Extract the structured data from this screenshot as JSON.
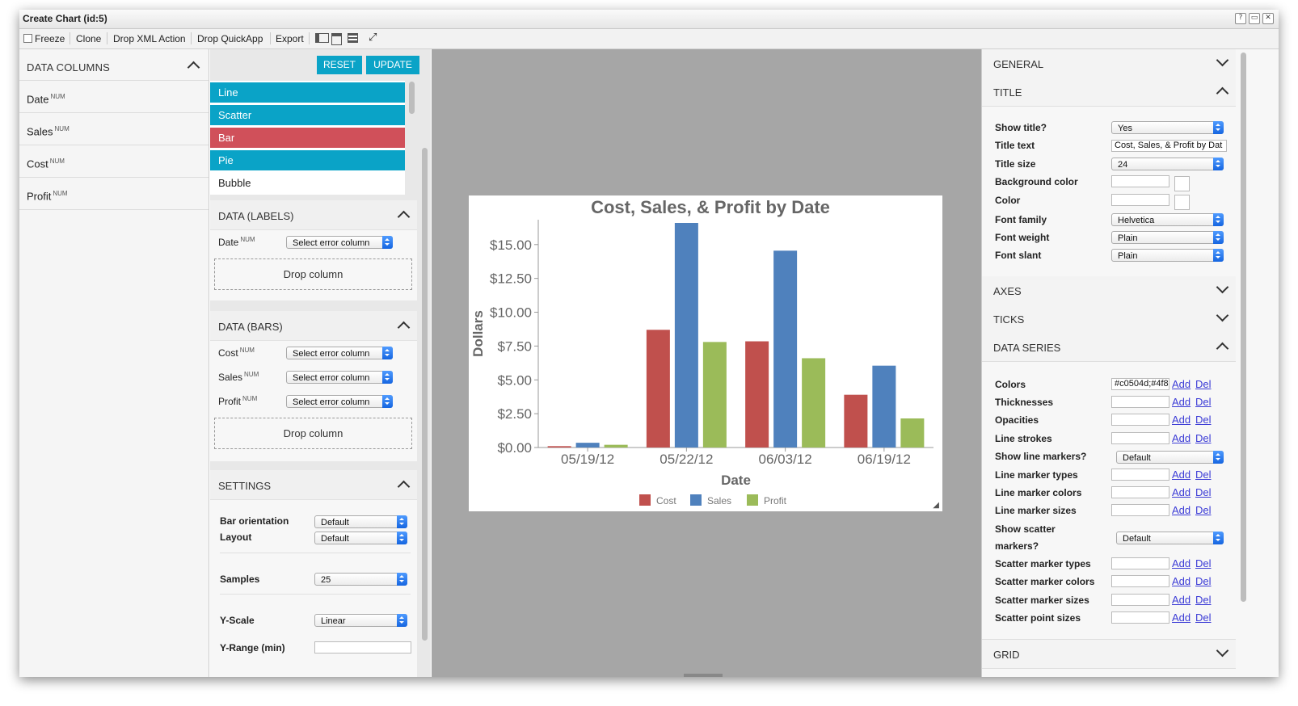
{
  "window": {
    "title": "Create Chart (id:5)",
    "controls": [
      "?",
      "▭",
      "✕"
    ]
  },
  "toolbar": {
    "freeze": "Freeze",
    "clone": "Clone",
    "drop_xml": "Drop XML Action",
    "drop_quickapp": "Drop QuickApp",
    "export": "Export"
  },
  "data_columns": {
    "header": "DATA COLUMNS",
    "items": [
      {
        "name": "Date",
        "type": "NUM"
      },
      {
        "name": "Sales",
        "type": "NUM"
      },
      {
        "name": "Cost",
        "type": "NUM"
      },
      {
        "name": "Profit",
        "type": "NUM"
      }
    ]
  },
  "actions": {
    "reset": "RESET",
    "update": "UPDATE"
  },
  "chart_types": [
    {
      "label": "Line",
      "color": "#0aa3c7"
    },
    {
      "label": "Scatter",
      "color": "#0aa3c7"
    },
    {
      "label": "Bar",
      "color": "#d0505a"
    },
    {
      "label": "Pie",
      "color": "#0aa3c7"
    },
    {
      "label": "Bubble",
      "color": ""
    }
  ],
  "labels_section": {
    "header": "DATA (LABELS)",
    "rows": [
      {
        "name": "Date",
        "type": "NUM",
        "select": "Select error column"
      }
    ],
    "drop": "Drop column"
  },
  "bars_section": {
    "header": "DATA (BARS)",
    "rows": [
      {
        "name": "Cost",
        "type": "NUM",
        "select": "Select error column"
      },
      {
        "name": "Sales",
        "type": "NUM",
        "select": "Select error column"
      },
      {
        "name": "Profit",
        "type": "NUM",
        "select": "Select error column"
      }
    ],
    "drop": "Drop column"
  },
  "settings": {
    "header": "SETTINGS",
    "bar_orientation": {
      "label": "Bar orientation",
      "value": "Default"
    },
    "layout": {
      "label": "Layout",
      "value": "Default"
    },
    "samples": {
      "label": "Samples",
      "value": "25"
    },
    "y_scale": {
      "label": "Y-Scale",
      "value": "Linear"
    },
    "y_range_min": {
      "label": "Y-Range (min)",
      "value": ""
    }
  },
  "chart_data": {
    "type": "bar",
    "title": "Cost, Sales, & Profit by Date",
    "xlabel": "Date",
    "ylabel": "Dollars",
    "categories": [
      "05/19/12",
      "05/22/12",
      "06/03/12",
      "06/19/12"
    ],
    "series": [
      {
        "name": "Cost",
        "color": "#c0504d",
        "values": [
          0.1,
          8.7,
          7.85,
          3.9
        ]
      },
      {
        "name": "Sales",
        "color": "#4f81bd",
        "values": [
          0.35,
          16.6,
          14.55,
          6.05
        ]
      },
      {
        "name": "Profit",
        "color": "#9bbb59",
        "values": [
          0.2,
          7.8,
          6.6,
          2.15
        ]
      }
    ],
    "ylim": [
      0,
      16.6
    ],
    "yticks": [
      0,
      2.5,
      5,
      7.5,
      10,
      12.5,
      15
    ],
    "ytick_labels": [
      "$0.00",
      "$2.50",
      "$5.00",
      "$7.50",
      "$10.00",
      "$12.50",
      "$15.00"
    ],
    "legend": "bottom-center",
    "grid": false
  },
  "right": {
    "general": "GENERAL",
    "title_header": "TITLE",
    "show_title": {
      "label": "Show title?",
      "value": "Yes"
    },
    "title_text": {
      "label": "Title text",
      "value": "Cost, Sales, & Profit by Dat"
    },
    "title_size": {
      "label": "Title size",
      "value": "24"
    },
    "bg_color": {
      "label": "Background color"
    },
    "color": {
      "label": "Color"
    },
    "font_family": {
      "label": "Font family",
      "value": "Helvetica"
    },
    "font_weight": {
      "label": "Font weight",
      "value": "Plain"
    },
    "font_slant": {
      "label": "Font slant",
      "value": "Plain"
    },
    "axes": "AXES",
    "ticks": "TICKS",
    "data_series": "DATA SERIES",
    "colors": {
      "label": "Colors",
      "value": "#c0504d;#4f8"
    },
    "thicknesses": {
      "label": "Thicknesses"
    },
    "opacities": {
      "label": "Opacities"
    },
    "line_strokes": {
      "label": "Line strokes"
    },
    "show_line_markers": {
      "label": "Show line markers?",
      "value": "Default"
    },
    "line_marker_types": {
      "label": "Line marker types"
    },
    "line_marker_colors": {
      "label": "Line marker colors"
    },
    "line_marker_sizes": {
      "label": "Line marker sizes"
    },
    "show_scatter_markers": {
      "label_1": "Show scatter",
      "label_2": "markers?",
      "value": "Default"
    },
    "scatter_marker_types": {
      "label": "Scatter marker types"
    },
    "scatter_marker_colors": {
      "label": "Scatter marker colors"
    },
    "scatter_marker_sizes": {
      "label": "Scatter marker sizes"
    },
    "scatter_point_sizes": {
      "label": "Scatter point sizes"
    },
    "grid": "GRID",
    "add": "Add",
    "del": "Del"
  }
}
